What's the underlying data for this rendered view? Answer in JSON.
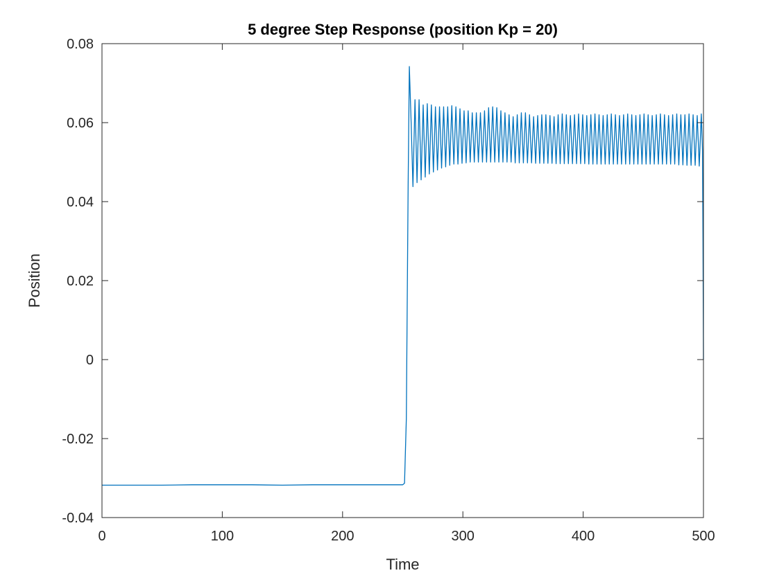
{
  "chart_data": {
    "type": "line",
    "title": "5 degree Step Response (position Kp = 20)",
    "xlabel": "Time",
    "ylabel": "Position",
    "xlim": [
      0,
      500
    ],
    "ylim": [
      -0.04,
      0.08
    ],
    "xticks": [
      0,
      100,
      200,
      300,
      400,
      500
    ],
    "xtick_labels": [
      "0",
      "100",
      "200",
      "300",
      "400",
      "500"
    ],
    "yticks": [
      -0.04,
      -0.02,
      0,
      0.02,
      0.04,
      0.06,
      0.08
    ],
    "ytick_labels": [
      "-0.04",
      "-0.02",
      "0",
      "0.02",
      "0.04",
      "0.06",
      "0.08"
    ],
    "grid": false,
    "line_color": "#0072BD",
    "series": [
      {
        "points": [
          [
            0,
            -0.0318
          ],
          [
            25,
            -0.0318
          ],
          [
            50,
            -0.0318
          ],
          [
            75,
            -0.0317
          ],
          [
            100,
            -0.0317
          ],
          [
            125,
            -0.0317
          ],
          [
            150,
            -0.0318
          ],
          [
            175,
            -0.0317
          ],
          [
            200,
            -0.0317
          ],
          [
            225,
            -0.0317
          ],
          [
            250,
            -0.0317
          ],
          [
            251.5,
            -0.0313
          ],
          [
            253,
            -0.015
          ],
          [
            254.5,
            0.044
          ],
          [
            255.5,
            0.0742
          ],
          [
            257,
            0.06
          ],
          [
            258.5,
            0.0438
          ],
          [
            260.2,
            0.0658
          ],
          [
            261.9,
            0.0448
          ],
          [
            263.6,
            0.0658
          ],
          [
            265.3,
            0.0455
          ],
          [
            267.0,
            0.0645
          ],
          [
            268.7,
            0.0462
          ],
          [
            270.4,
            0.0648
          ],
          [
            272.1,
            0.047
          ],
          [
            273.8,
            0.0645
          ],
          [
            275.5,
            0.0475
          ],
          [
            277.2,
            0.064
          ],
          [
            278.9,
            0.048
          ],
          [
            280.6,
            0.064
          ],
          [
            282.3,
            0.0485
          ],
          [
            284.0,
            0.064
          ],
          [
            285.7,
            0.0488
          ],
          [
            287.4,
            0.064
          ],
          [
            289.1,
            0.0492
          ],
          [
            290.8,
            0.0643
          ],
          [
            292.5,
            0.0495
          ],
          [
            294.2,
            0.064
          ],
          [
            295.9,
            0.0495
          ],
          [
            297.6,
            0.0635
          ],
          [
            299.3,
            0.0497
          ],
          [
            301.0,
            0.063
          ],
          [
            302.7,
            0.0498
          ],
          [
            304.4,
            0.063
          ],
          [
            306.1,
            0.05
          ],
          [
            307.8,
            0.0625
          ],
          [
            309.5,
            0.05
          ],
          [
            311.2,
            0.0625
          ],
          [
            312.9,
            0.05
          ],
          [
            314.6,
            0.0625
          ],
          [
            316.3,
            0.05
          ],
          [
            318.0,
            0.063
          ],
          [
            319.7,
            0.05
          ],
          [
            321.4,
            0.0638
          ],
          [
            323.1,
            0.05
          ],
          [
            324.8,
            0.064
          ],
          [
            326.5,
            0.05
          ],
          [
            328.2,
            0.0638
          ],
          [
            329.9,
            0.05
          ],
          [
            331.6,
            0.063
          ],
          [
            333.3,
            0.05
          ],
          [
            335.0,
            0.0625
          ],
          [
            336.7,
            0.05
          ],
          [
            338.4,
            0.062
          ],
          [
            340.1,
            0.05
          ],
          [
            341.8,
            0.0615
          ],
          [
            343.5,
            0.0498
          ],
          [
            345.2,
            0.062
          ],
          [
            346.9,
            0.0498
          ],
          [
            348.6,
            0.0625
          ],
          [
            350.3,
            0.0498
          ],
          [
            352.0,
            0.0625
          ],
          [
            353.7,
            0.0498
          ],
          [
            355.4,
            0.062
          ],
          [
            357.1,
            0.0498
          ],
          [
            358.8,
            0.0615
          ],
          [
            360.5,
            0.0497
          ],
          [
            362.2,
            0.0618
          ],
          [
            363.9,
            0.0497
          ],
          [
            365.6,
            0.062
          ],
          [
            367.3,
            0.0497
          ],
          [
            369.0,
            0.062
          ],
          [
            370.7,
            0.0497
          ],
          [
            372.4,
            0.0618
          ],
          [
            374.1,
            0.0497
          ],
          [
            375.8,
            0.0615
          ],
          [
            377.5,
            0.0496
          ],
          [
            379.2,
            0.062
          ],
          [
            380.9,
            0.0496
          ],
          [
            382.6,
            0.0622
          ],
          [
            384.3,
            0.0496
          ],
          [
            386.0,
            0.062
          ],
          [
            387.7,
            0.0496
          ],
          [
            389.4,
            0.0618
          ],
          [
            391.1,
            0.0496
          ],
          [
            392.8,
            0.062
          ],
          [
            394.5,
            0.0496
          ],
          [
            396.2,
            0.0622
          ],
          [
            397.9,
            0.0496
          ],
          [
            399.6,
            0.062
          ],
          [
            401.3,
            0.0496
          ],
          [
            403.0,
            0.0618
          ],
          [
            404.7,
            0.0495
          ],
          [
            406.4,
            0.062
          ],
          [
            408.1,
            0.0495
          ],
          [
            409.8,
            0.0622
          ],
          [
            411.5,
            0.0495
          ],
          [
            413.2,
            0.062
          ],
          [
            414.9,
            0.0495
          ],
          [
            416.6,
            0.0618
          ],
          [
            418.3,
            0.0495
          ],
          [
            420.0,
            0.062
          ],
          [
            421.7,
            0.0495
          ],
          [
            423.4,
            0.0622
          ],
          [
            425.1,
            0.0495
          ],
          [
            426.8,
            0.062
          ],
          [
            428.5,
            0.0495
          ],
          [
            430.2,
            0.0618
          ],
          [
            431.9,
            0.0495
          ],
          [
            433.6,
            0.062
          ],
          [
            435.3,
            0.0495
          ],
          [
            437.0,
            0.0622
          ],
          [
            438.7,
            0.0495
          ],
          [
            440.4,
            0.062
          ],
          [
            442.1,
            0.0495
          ],
          [
            443.8,
            0.0618
          ],
          [
            445.5,
            0.0495
          ],
          [
            447.2,
            0.062
          ],
          [
            448.9,
            0.0495
          ],
          [
            450.6,
            0.0622
          ],
          [
            452.3,
            0.0495
          ],
          [
            454.0,
            0.062
          ],
          [
            455.7,
            0.0495
          ],
          [
            457.4,
            0.0618
          ],
          [
            459.1,
            0.0495
          ],
          [
            460.8,
            0.062
          ],
          [
            462.5,
            0.0495
          ],
          [
            464.2,
            0.0622
          ],
          [
            465.9,
            0.0495
          ],
          [
            467.6,
            0.062
          ],
          [
            469.3,
            0.0495
          ],
          [
            471.0,
            0.0618
          ],
          [
            472.7,
            0.0495
          ],
          [
            474.4,
            0.062
          ],
          [
            476.1,
            0.0495
          ],
          [
            477.8,
            0.0622
          ],
          [
            479.5,
            0.0493
          ],
          [
            481.2,
            0.062
          ],
          [
            482.9,
            0.0493
          ],
          [
            484.6,
            0.062
          ],
          [
            486.3,
            0.0492
          ],
          [
            488.0,
            0.0622
          ],
          [
            489.7,
            0.0492
          ],
          [
            491.4,
            0.062
          ],
          [
            493.1,
            0.0492
          ],
          [
            494.8,
            0.0618
          ],
          [
            496.5,
            0.049
          ],
          [
            498.2,
            0.0622
          ],
          [
            499.2,
            0.053
          ],
          [
            499.6,
            0.03
          ],
          [
            500,
            0.0
          ]
        ]
      }
    ]
  }
}
